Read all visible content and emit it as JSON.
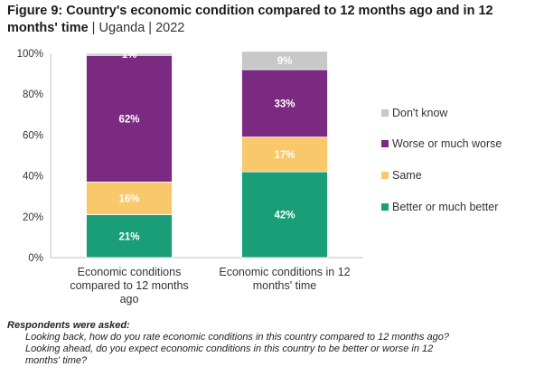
{
  "title": {
    "bold_text": "Figure 9: Country's economic condition compared to 12 months ago and in 12 months' time",
    "sub_text": " | Uganda | 2022"
  },
  "chart_data": {
    "type": "bar",
    "stacked": true,
    "percent": true,
    "categories": [
      [
        "Economic conditions",
        "compared to 12 months",
        "ago"
      ],
      [
        "Economic conditions in 12",
        "months' time"
      ]
    ],
    "series": [
      {
        "name": "Better or much better",
        "values": [
          21,
          42
        ],
        "color": "#1a9e78",
        "labels": [
          "21%",
          "42%"
        ]
      },
      {
        "name": "Same",
        "values": [
          16,
          17
        ],
        "color": "#f8c86a",
        "labels": [
          "16%",
          "17%"
        ]
      },
      {
        "name": "Worse or much worse",
        "values": [
          62,
          33
        ],
        "color": "#7b2a82",
        "labels": [
          "62%",
          "33%"
        ]
      },
      {
        "name": "Don't know",
        "values": [
          1,
          9
        ],
        "color": "#c8c8c8",
        "labels": [
          "1%",
          "9%"
        ]
      }
    ],
    "ylim": [
      0,
      100
    ],
    "yticks": [
      "0%",
      "20%",
      "40%",
      "60%",
      "80%",
      "100%"
    ],
    "legend_position": "right",
    "legend_order": [
      "Don't know",
      "Worse or much worse",
      "Same",
      "Better or much better"
    ]
  },
  "notes": {
    "label": "Respondents were asked:",
    "lines": [
      "Looking back, how do you rate economic conditions in this country compared to 12 months ago?",
      "Looking ahead, do you expect economic conditions in this country to be better or worse in 12",
      "months' time?"
    ]
  }
}
